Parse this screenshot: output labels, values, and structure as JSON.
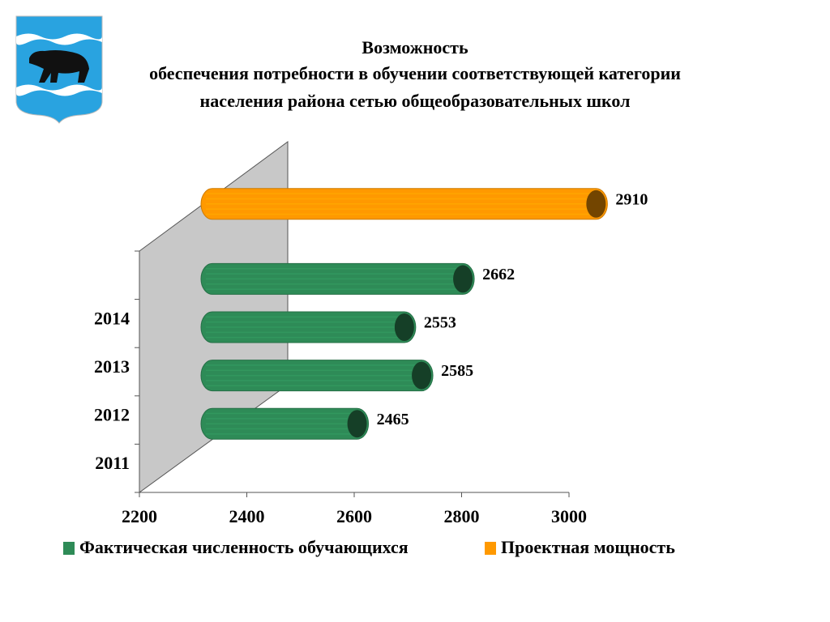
{
  "chart_data": {
    "type": "bar",
    "orientation": "horizontal",
    "title": [
      "Возможность",
      "обеспечения потребности в обучении соответствующей категории",
      "населения района сетью общеобразовательных школ"
    ],
    "categories": [
      "2011",
      "2012",
      "2013",
      "2014",
      null
    ],
    "series": [
      {
        "name": "Фактическая численность обучающихся",
        "color": "#2e8b57",
        "values": [
          2465,
          2585,
          2553,
          2662,
          null
        ]
      },
      {
        "name": "Проектная мощность",
        "color": "#ff9900",
        "values": [
          null,
          null,
          null,
          null,
          2910
        ]
      }
    ],
    "xlim": [
      2200,
      3000
    ],
    "xticks": [
      2200,
      2400,
      2600,
      2800,
      3000
    ],
    "legend": "bottom"
  }
}
